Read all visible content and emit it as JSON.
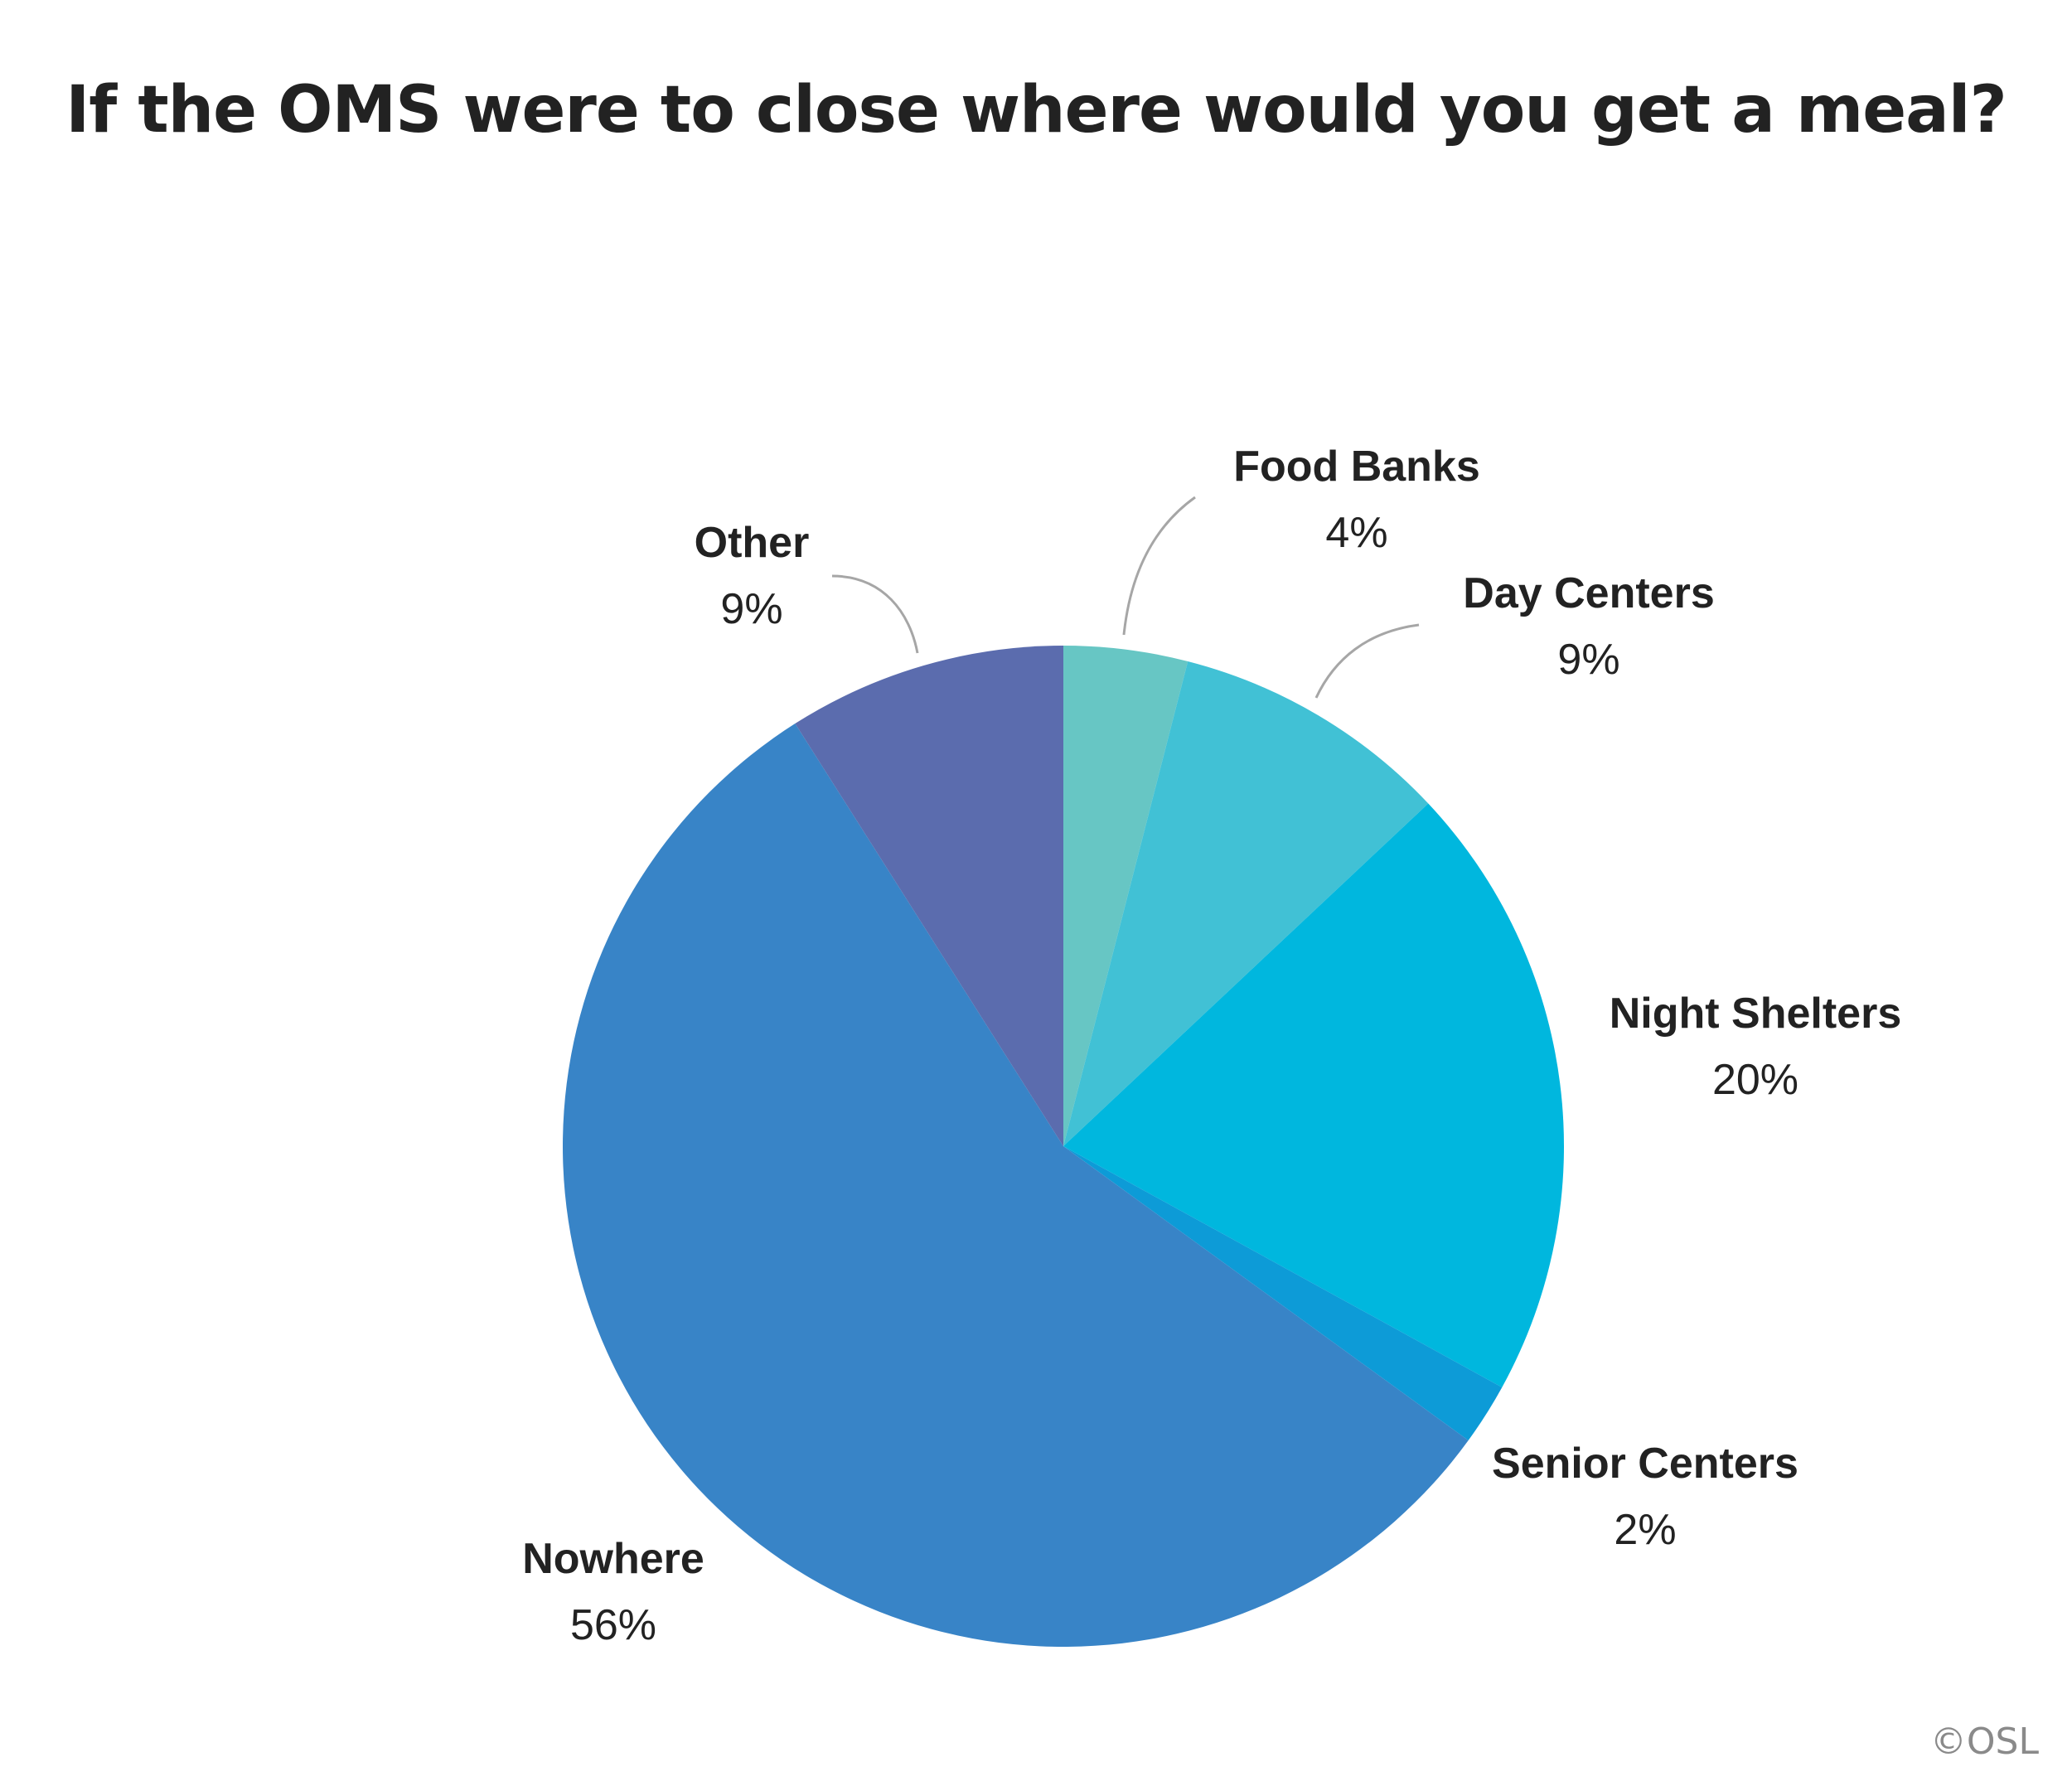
{
  "chart_data": {
    "type": "pie",
    "title": "If the OMS were to close where would you get a meal?",
    "start_angle": "12 o'clock",
    "direction": "clockwise",
    "slices": [
      {
        "label": "Food Banks",
        "value": 4,
        "display": "4%",
        "color": "#67c6c4"
      },
      {
        "label": "Day Centers",
        "value": 9,
        "display": "9%",
        "color": "#41c1d5"
      },
      {
        "label": "Night Shelters",
        "value": 20,
        "display": "20%",
        "color": "#00b7de"
      },
      {
        "label": "Senior Centers",
        "value": 2,
        "display": "2%",
        "color": "#0d9bd7"
      },
      {
        "label": "Nowhere",
        "value": 56,
        "display": "56%",
        "color": "#3884c7"
      },
      {
        "label": "Other",
        "value": 9,
        "display": "9%",
        "color": "#5b6cae"
      }
    ]
  },
  "credit": "©OSL"
}
